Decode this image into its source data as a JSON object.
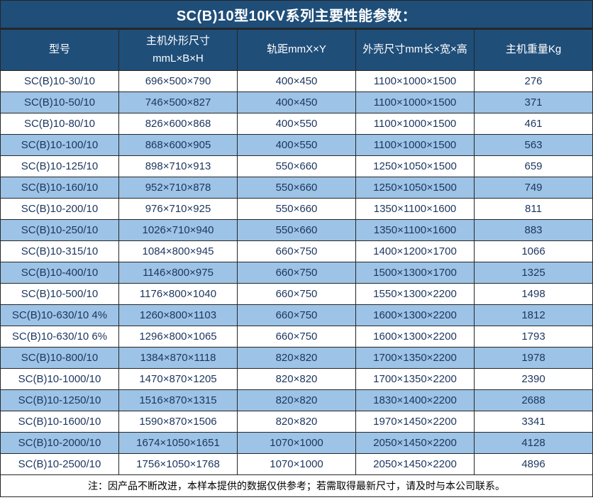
{
  "title": "SC(B)10型10KV系列主要性能参数：",
  "table": {
    "columns": [
      "型号",
      "主机外形尺寸\nmmL×B×H",
      "轨距mmX×Y",
      "外壳尺寸mm长×宽×高",
      "主机重量Kg"
    ],
    "rows": [
      [
        "SC(B)10-30/10",
        "696×500×790",
        "400×450",
        "1100×1000×1500",
        "276"
      ],
      [
        "SC(B)10-50/10",
        "746×500×827",
        "400×450",
        "1100×1000×1500",
        "371"
      ],
      [
        "SC(B)10-80/10",
        "826×600×868",
        "400×550",
        "1100×1000×1500",
        "461"
      ],
      [
        "SC(B)10-100/10",
        "868×600×905",
        "400×550",
        "1100×1000×1500",
        "563"
      ],
      [
        "SC(B)10-125/10",
        "898×710×913",
        "550×660",
        "1250×1050×1500",
        "659"
      ],
      [
        "SC(B)10-160/10",
        "952×710×878",
        "550×660",
        "1250×1050×1500",
        "749"
      ],
      [
        "SC(B)10-200/10",
        "976×710×925",
        "550×660",
        "1350×1100×1600",
        "811"
      ],
      [
        "SC(B)10-250/10",
        "1026×710×940",
        "550×660",
        "1350×1100×1600",
        "883"
      ],
      [
        "SC(B)10-315/10",
        "1084×800×945",
        "660×750",
        "1400×1200×1700",
        "1066"
      ],
      [
        "SC(B)10-400/10",
        "1146×800×975",
        "660×750",
        "1500×1300×1700",
        "1325"
      ],
      [
        "SC(B)10-500/10",
        "1176×800×1040",
        "660×750",
        "1550×1300×2200",
        "1498"
      ],
      [
        "SC(B)10-630/10 4%",
        "1260×800×1103",
        "660×750",
        "1600×1300×2200",
        "1812"
      ],
      [
        "SC(B)10-630/10 6%",
        "1296×800×1065",
        "660×750",
        "1600×1300×2200",
        "1793"
      ],
      [
        "SC(B)10-800/10",
        "1384×870×1118",
        "820×820",
        "1700×1350×2200",
        "1978"
      ],
      [
        "SC(B)10-1000/10",
        "1470×870×1205",
        "820×820",
        "1700×1350×2200",
        "2390"
      ],
      [
        "SC(B)10-1250/10",
        "1516×870×1315",
        "820×820",
        "1830×1400×2200",
        "2688"
      ],
      [
        "SC(B)10-1600/10",
        "1590×870×1506",
        "820×820",
        "1970×1450×2200",
        "3341"
      ],
      [
        "SC(B)10-2000/10",
        "1674×1050×1651",
        "1070×1000",
        "2050×1450×2200",
        "4128"
      ],
      [
        "SC(B)10-2500/10",
        "1756×1050×1768",
        "1070×1000",
        "2050×1450×2200",
        "4896"
      ]
    ]
  },
  "footer_note": "注：因产品不断改进，本样本提供的数据仅供参考；若需取得最新尺寸，请及时与本公司联系。",
  "colors": {
    "header_bg": "#1F4E79",
    "header_text": "#FFFFFF",
    "row_bg": "#FFFFFF",
    "row_alt_bg": "#9DC3E6",
    "cell_text": "#1C355E",
    "border": "#262626",
    "note_text": "#000000"
  }
}
